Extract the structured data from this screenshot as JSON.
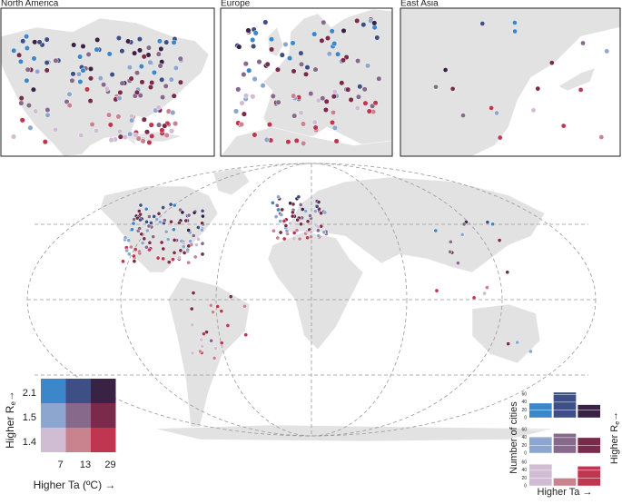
{
  "insets": [
    {
      "title": "North America"
    },
    {
      "title": "Europe"
    },
    {
      "title": "East Asia"
    }
  ],
  "legend": {
    "y_label": "Higher R",
    "y_label_sub": "e",
    "y_arrow": "→",
    "y_ticks": [
      2.1,
      1.5,
      1.4
    ],
    "x_ticks": [
      7,
      13,
      29
    ],
    "x_label": "Higher Ta (ºC) →",
    "colors": [
      [
        "#3b87c9",
        "#3e4f86",
        "#3a2245"
      ],
      [
        "#8ca6d0",
        "#86698b",
        "#7a2a4a"
      ],
      [
        "#d0bcd3",
        "#c8838f",
        "#c0354f"
      ]
    ]
  },
  "bars": {
    "y_label": "Number of cities",
    "x_label": "Higher Ta →",
    "right_label": "Higher R",
    "right_label_sub": "e",
    "right_arrow": "→",
    "ylim": [
      0,
      70
    ],
    "yticks": [
      0,
      20,
      40,
      60
    ],
    "rows": [
      {
        "values": [
          37,
          65,
          33
        ]
      },
      {
        "values": [
          42,
          50,
          40
        ]
      },
      {
        "values": [
          55,
          20,
          50
        ]
      }
    ]
  }
}
